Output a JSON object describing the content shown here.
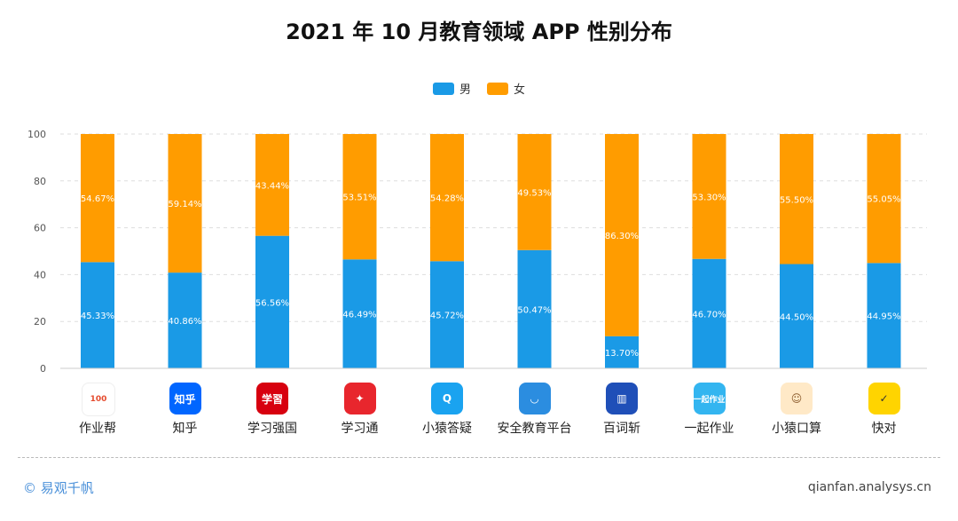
{
  "title": "2021 年 10 月教育领域 APP 性别分布",
  "legend": {
    "male": "男",
    "female": "女"
  },
  "colors": {
    "male": "#1a9ae6",
    "female": "#ff9c00",
    "grid": "#dddddd"
  },
  "chart_data": {
    "type": "bar",
    "stacked": true,
    "categories": [
      "作业帮",
      "知乎",
      "学习强国",
      "学习通",
      "小猿答疑",
      "安全教育平台",
      "百词斩",
      "一起作业",
      "小猿口算",
      "快对"
    ],
    "series": [
      {
        "name": "男",
        "values": [
          45.33,
          40.86,
          56.56,
          46.49,
          45.72,
          50.47,
          13.7,
          46.7,
          44.5,
          44.95
        ],
        "labels": [
          "45.33%",
          "40.86%",
          "56.56%",
          "46.49%",
          "45.72%",
          "50.47%",
          "13.70%",
          "46.70%",
          "44.50%",
          "44.95%"
        ]
      },
      {
        "name": "女",
        "values": [
          54.67,
          59.14,
          43.44,
          53.51,
          54.28,
          49.53,
          86.3,
          53.3,
          55.5,
          55.05
        ],
        "labels": [
          "54.67%",
          "59.14%",
          "43.44%",
          "53.51%",
          "54.28%",
          "49.53%",
          "86.30%",
          "53.30%",
          "55.50%",
          "55.05%"
        ]
      }
    ],
    "ylim": [
      0,
      100
    ],
    "yticks": [
      "0",
      "20",
      "40",
      "60",
      "80",
      "100"
    ],
    "grid": true,
    "legend_position": "top-center"
  },
  "app_icons": [
    {
      "icon": "zuoyebang-icon",
      "glyph": "100",
      "bg": "#ffffff",
      "fg": "#e54b2e"
    },
    {
      "icon": "zhihu-icon",
      "glyph": "知乎",
      "bg": "#0066ff",
      "fg": "#ffffff"
    },
    {
      "icon": "xuexiqiangguo-icon",
      "glyph": "学習",
      "bg": "#d7000f",
      "fg": "#ffffff"
    },
    {
      "icon": "xuexitong-icon",
      "glyph": "✦",
      "bg": "#e8262d",
      "fg": "#ffffff"
    },
    {
      "icon": "xiaoyuandayi-icon",
      "glyph": "Q",
      "bg": "#1aa3f0",
      "fg": "#ffffff"
    },
    {
      "icon": "anquanjiaoyu-icon",
      "glyph": "◡",
      "bg": "#2b8de0",
      "fg": "#ffffff"
    },
    {
      "icon": "baicizhan-icon",
      "glyph": "▥",
      "bg": "#1f4fb8",
      "fg": "#ffffff"
    },
    {
      "icon": "yiqizuoye-icon",
      "glyph": "一起作业",
      "bg": "#33b5f0",
      "fg": "#ffffff"
    },
    {
      "icon": "xiaoyuankousuan-icon",
      "glyph": "☺",
      "bg": "#ffe9c7",
      "fg": "#8a5a2b"
    },
    {
      "icon": "kuaidui-icon",
      "glyph": "✓",
      "bg": "#ffd400",
      "fg": "#333333"
    }
  ],
  "footer": {
    "brand": "© 易观千帆",
    "site": "qianfan.analysys.cn"
  }
}
